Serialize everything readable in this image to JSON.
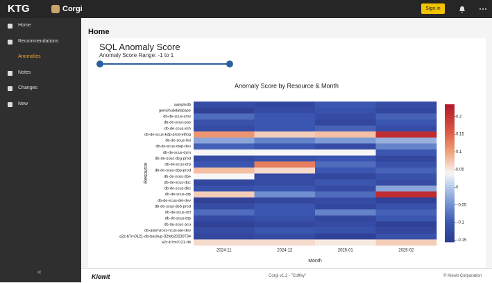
{
  "header": {
    "logo": "KTG",
    "app": "Corgi",
    "sign_in": "Sign in"
  },
  "sidebar": {
    "items": [
      "Home",
      "Recommendations",
      "Anomalies",
      "Notes",
      "Changes",
      "New"
    ],
    "collapse": "«"
  },
  "page": {
    "title": "Home",
    "card_title": "SQL Anomaly Score",
    "range_text": "Anomaly Score Range: -1 to 1"
  },
  "chart_data": {
    "type": "heatmap",
    "title": "Anomaly Score by Resource & Month",
    "x_label": "Month",
    "y_label": "Resource",
    "x": [
      "2024-11",
      "2024-12",
      "2025-01",
      "2025-02"
    ],
    "y": [
      "sampledb",
      "genaihubdatabase",
      "db-de-scus-smv",
      "db-de-scus-pao",
      "db-de-scus-ksh",
      "db-de-scus-kdp-prod-etllog",
      "db-de-scus-hsi",
      "db-de-scus-dwp-dev",
      "db-de-scus-dsm",
      "db-de-scus-dsg-prod",
      "db-de-scus-drp",
      "db-de-scus-dpp-prod",
      "db-de-scus-dpe",
      "db-de-scus-dpc",
      "db-de-scus-dkc",
      "db-de-scus-dip",
      "db-de-scus-dei-dev",
      "db-de-scus-deb-prod",
      "db-de-scus-dct",
      "db-de-scus-btp",
      "db-de-scus-acu",
      "db-aiservices-ncus-aie-dev",
      "a2z-b7m0121-db-backup-02feb20230734",
      "a2z-b7m0121-db"
    ],
    "values": [
      [
        -0.12,
        -0.13,
        -0.1,
        -0.12
      ],
      [
        -0.14,
        -0.12,
        -0.11,
        -0.13
      ],
      [
        -0.08,
        -0.1,
        -0.12,
        -0.09
      ],
      [
        -0.11,
        -0.1,
        -0.13,
        -0.1
      ],
      [
        -0.12,
        -0.1,
        -0.09,
        -0.12
      ],
      [
        0.11,
        0.07,
        0.08,
        0.21
      ],
      [
        -0.03,
        -0.06,
        -0.04,
        -0.02
      ],
      [
        -0.09,
        -0.1,
        -0.12,
        -0.06
      ],
      [
        0.04,
        0.04,
        0.04,
        -0.1
      ],
      [
        -0.12,
        -0.11,
        -0.1,
        -0.13
      ],
      [
        -0.1,
        0.13,
        -0.08,
        -0.11
      ],
      [
        0.08,
        0.06,
        -0.1,
        -0.09
      ],
      [
        0.04,
        -0.12,
        -0.13,
        -0.11
      ],
      [
        -0.13,
        -0.12,
        -0.1,
        -0.12
      ],
      [
        -0.11,
        -0.1,
        -0.12,
        -0.03
      ],
      [
        0.07,
        -0.05,
        -0.08,
        0.21
      ],
      [
        -0.14,
        -0.13,
        -0.12,
        -0.14
      ],
      [
        -0.12,
        -0.1,
        -0.13,
        -0.11
      ],
      [
        -0.08,
        -0.1,
        -0.06,
        -0.09
      ],
      [
        -0.12,
        -0.11,
        -0.13,
        -0.1
      ],
      [
        -0.14,
        -0.13,
        -0.12,
        -0.14
      ],
      [
        -0.12,
        -0.1,
        -0.11,
        -0.13
      ],
      [
        -0.13,
        -0.12,
        -0.14,
        -0.11
      ],
      [
        0.06,
        0.06,
        0.05,
        0.07
      ]
    ],
    "clim": [
      -0.155,
      0.235
    ],
    "cticks": [
      0.2,
      0.15,
      0.1,
      0.05,
      0,
      {
        "value": -0.05,
        "label": "−0.05"
      },
      {
        "value": -0.1,
        "label": "−0.1"
      },
      {
        "value": -0.15,
        "label": "−0.15"
      }
    ]
  },
  "footer": {
    "brand": "Kiewit",
    "version": "Corgi v1.2 - \"Coffey\"",
    "copyright": "© Kiewit Corporation"
  }
}
